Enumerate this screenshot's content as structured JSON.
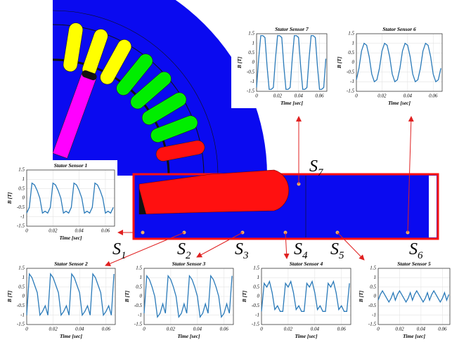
{
  "chart_data": [
    {
      "type": "line",
      "title": "Stator Sensor 7",
      "xlabel": "Time [sec]",
      "ylabel": "B [T]",
      "color": "#2a7ab9",
      "grid": true,
      "xlim": [
        0,
        0.067
      ],
      "ylim": [
        -1.5,
        1.5
      ],
      "xticks": [
        0,
        0.02,
        0.04,
        0.06
      ],
      "yticks": [
        -1.5,
        -1,
        -0.5,
        0,
        0.5,
        1,
        1.5
      ],
      "x": [
        0,
        0.002,
        0.004,
        0.006,
        0.008,
        0.01,
        0.012,
        0.014,
        0.016,
        0.018,
        0.02,
        0.022,
        0.024,
        0.026,
        0.028,
        0.03,
        0.032,
        0.034,
        0.036,
        0.038,
        0.04,
        0.042,
        0.044,
        0.046,
        0.048,
        0.05,
        0.052,
        0.054,
        0.056,
        0.058,
        0.06,
        0.062,
        0.064,
        0.066
      ],
      "values": [
        -1.3,
        0.2,
        1.4,
        1.4,
        1.3,
        -0.2,
        -1.4,
        -1.4,
        -1.3,
        0.2,
        1.4,
        1.4,
        1.3,
        -0.2,
        -1.4,
        -1.4,
        -1.3,
        0.2,
        1.4,
        1.4,
        1.3,
        -0.2,
        -1.4,
        -1.4,
        -1.3,
        0.2,
        1.4,
        1.4,
        1.3,
        -0.2,
        -1.4,
        -1.4,
        -1.3,
        0.2
      ]
    },
    {
      "type": "line",
      "title": "Stator Sensor 6",
      "xlabel": "Time [sec]",
      "ylabel": "B [T]",
      "color": "#2a7ab9",
      "grid": true,
      "xlim": [
        0,
        0.067
      ],
      "ylim": [
        -1.5,
        1.5
      ],
      "xticks": [
        0,
        0.02,
        0.04,
        0.06
      ],
      "yticks": [
        -1.5,
        -1,
        -0.5,
        0,
        0.5,
        1,
        1.5
      ],
      "x": [
        0,
        0.002,
        0.004,
        0.006,
        0.008,
        0.01,
        0.012,
        0.014,
        0.016,
        0.018,
        0.02,
        0.022,
        0.024,
        0.026,
        0.028,
        0.03,
        0.032,
        0.034,
        0.036,
        0.038,
        0.04,
        0.042,
        0.044,
        0.046,
        0.048,
        0.05,
        0.052,
        0.054,
        0.056,
        0.058,
        0.06,
        0.062,
        0.064,
        0.066
      ],
      "values": [
        -0.9,
        -0.3,
        0.6,
        1.0,
        0.9,
        0.3,
        -0.6,
        -1.0,
        -0.9,
        -0.3,
        0.6,
        1.0,
        0.9,
        0.3,
        -0.6,
        -1.0,
        -0.9,
        -0.3,
        0.6,
        1.0,
        0.9,
        0.3,
        -0.6,
        -1.0,
        -0.9,
        -0.3,
        0.6,
        1.0,
        0.9,
        0.3,
        -0.6,
        -1.0,
        -0.9,
        -0.3
      ]
    },
    {
      "type": "line",
      "title": "Stator Sensor 1",
      "xlabel": "Time [sec]",
      "ylabel": "B [T]",
      "color": "#2a7ab9",
      "grid": true,
      "xlim": [
        0,
        0.067
      ],
      "ylim": [
        -1.5,
        1.5
      ],
      "xticks": [
        0,
        0.02,
        0.04,
        0.06
      ],
      "yticks": [
        -1.5,
        -1,
        -0.5,
        0,
        0.5,
        1,
        1.5
      ],
      "x": [
        0,
        0.002,
        0.004,
        0.006,
        0.008,
        0.01,
        0.012,
        0.014,
        0.016,
        0.018,
        0.02,
        0.022,
        0.024,
        0.026,
        0.028,
        0.03,
        0.032,
        0.034,
        0.036,
        0.038,
        0.04,
        0.042,
        0.044,
        0.046,
        0.048,
        0.05,
        0.052,
        0.054,
        0.056,
        0.058,
        0.06,
        0.062,
        0.064,
        0.066
      ],
      "values": [
        -0.8,
        -0.5,
        0.8,
        0.7,
        0.4,
        0.0,
        -0.8,
        -0.7,
        -0.8,
        -0.5,
        0.8,
        0.7,
        0.4,
        0.0,
        -0.8,
        -0.7,
        -0.8,
        -0.5,
        0.8,
        0.7,
        0.4,
        0.0,
        -0.8,
        -0.7,
        -0.8,
        -0.5,
        0.8,
        0.7,
        0.4,
        0.0,
        -0.8,
        -0.7,
        -0.8,
        -0.5
      ]
    },
    {
      "type": "line",
      "title": "Stator Sensor 2",
      "xlabel": "Time [sec]",
      "ylabel": "B [T]",
      "color": "#2a7ab9",
      "grid": true,
      "xlim": [
        0,
        0.067
      ],
      "ylim": [
        -1.5,
        1.5
      ],
      "xticks": [
        0,
        0.02,
        0.04,
        0.06
      ],
      "yticks": [
        -1.5,
        -1,
        -0.5,
        0,
        0.5,
        1,
        1.5
      ],
      "x": [
        0,
        0.002,
        0.004,
        0.006,
        0.008,
        0.01,
        0.012,
        0.014,
        0.016,
        0.018,
        0.02,
        0.022,
        0.024,
        0.026,
        0.028,
        0.03,
        0.032,
        0.034,
        0.036,
        0.038,
        0.04,
        0.042,
        0.044,
        0.046,
        0.048,
        0.05,
        0.052,
        0.054,
        0.056,
        0.058,
        0.06,
        0.062,
        0.064,
        0.066
      ],
      "values": [
        -1.0,
        1.2,
        1.0,
        0.6,
        0.2,
        -1.0,
        -0.8,
        -0.5,
        -1.0,
        1.2,
        1.0,
        0.6,
        0.2,
        -1.0,
        -0.8,
        -0.5,
        -1.0,
        1.2,
        1.0,
        0.6,
        0.2,
        -1.0,
        -0.8,
        -0.5,
        -1.0,
        1.2,
        1.0,
        0.6,
        0.2,
        -1.0,
        -0.8,
        -0.5,
        -1.0,
        1.2
      ]
    },
    {
      "type": "line",
      "title": "Stator Sensor 3",
      "xlabel": "Time [sec]",
      "ylabel": "B [T]",
      "color": "#2a7ab9",
      "grid": true,
      "xlim": [
        0,
        0.067
      ],
      "ylim": [
        -1.5,
        1.5
      ],
      "xticks": [
        0,
        0.02,
        0.04,
        0.06
      ],
      "yticks": [
        -1.5,
        -1,
        -0.5,
        0,
        0.5,
        1,
        1.5
      ],
      "x": [
        0,
        0.002,
        0.004,
        0.006,
        0.008,
        0.01,
        0.012,
        0.014,
        0.016,
        0.018,
        0.02,
        0.022,
        0.024,
        0.026,
        0.028,
        0.03,
        0.032,
        0.034,
        0.036,
        0.038,
        0.04,
        0.042,
        0.044,
        0.046,
        0.048,
        0.05,
        0.052,
        0.054,
        0.056,
        0.058,
        0.06,
        0.062,
        0.064,
        0.066
      ],
      "values": [
        -0.9,
        1.1,
        0.9,
        0.5,
        0.0,
        -1.1,
        -0.9,
        -0.4,
        -0.9,
        1.1,
        0.9,
        0.5,
        0.0,
        -1.1,
        -0.9,
        -0.4,
        -0.9,
        1.1,
        0.9,
        0.5,
        0.0,
        -1.1,
        -0.9,
        -0.4,
        -0.9,
        1.1,
        0.9,
        0.5,
        0.0,
        -1.1,
        -0.9,
        -0.4,
        -0.9,
        1.1
      ]
    },
    {
      "type": "line",
      "title": "Stator Sensor 4",
      "xlabel": "Time [sec]",
      "ylabel": "B [T]",
      "color": "#2a7ab9",
      "grid": true,
      "xlim": [
        0,
        0.067
      ],
      "ylim": [
        -1.5,
        1.5
      ],
      "xticks": [
        0,
        0.02,
        0.04,
        0.06
      ],
      "yticks": [
        -1.5,
        -1,
        -0.5,
        0,
        0.5,
        1,
        1.5
      ],
      "x": [
        0,
        0.002,
        0.004,
        0.006,
        0.008,
        0.01,
        0.012,
        0.014,
        0.016,
        0.018,
        0.02,
        0.022,
        0.024,
        0.026,
        0.028,
        0.03,
        0.032,
        0.034,
        0.036,
        0.038,
        0.04,
        0.042,
        0.044,
        0.046,
        0.048,
        0.05,
        0.052,
        0.054,
        0.056,
        0.058,
        0.06,
        0.062,
        0.064,
        0.066
      ],
      "values": [
        -0.8,
        0.7,
        0.5,
        0.8,
        0.2,
        -0.7,
        -0.5,
        -0.8,
        -0.8,
        0.7,
        0.5,
        0.8,
        0.2,
        -0.7,
        -0.5,
        -0.8,
        -0.8,
        0.7,
        0.5,
        0.8,
        0.2,
        -0.7,
        -0.5,
        -0.8,
        -0.8,
        0.7,
        0.5,
        0.8,
        0.2,
        -0.7,
        -0.5,
        -0.8,
        -0.8,
        0.7
      ]
    },
    {
      "type": "line",
      "title": "Stator Sensor 5",
      "xlabel": "Time [sec]",
      "ylabel": "B [T]",
      "color": "#2a7ab9",
      "grid": true,
      "xlim": [
        0,
        0.067
      ],
      "ylim": [
        -1.5,
        1.5
      ],
      "xticks": [
        0,
        0.02,
        0.04,
        0.06
      ],
      "yticks": [
        -1.5,
        -1,
        -0.5,
        0,
        0.5,
        1,
        1.5
      ],
      "x": [
        0,
        0.002,
        0.004,
        0.006,
        0.008,
        0.01,
        0.012,
        0.014,
        0.016,
        0.018,
        0.02,
        0.022,
        0.024,
        0.026,
        0.028,
        0.03,
        0.032,
        0.034,
        0.036,
        0.038,
        0.04,
        0.042,
        0.044,
        0.046,
        0.048,
        0.05,
        0.052,
        0.054,
        0.056,
        0.058,
        0.06,
        0.062,
        0.064,
        0.066
      ],
      "values": [
        -0.2,
        0.1,
        0.3,
        0.1,
        -0.1,
        -0.3,
        -0.1,
        0.2,
        -0.2,
        0.1,
        0.3,
        0.1,
        -0.1,
        -0.3,
        -0.1,
        0.2,
        -0.2,
        0.1,
        0.3,
        0.1,
        -0.1,
        -0.3,
        -0.1,
        0.2,
        -0.2,
        0.1,
        0.3,
        0.1,
        -0.1,
        -0.3,
        -0.1,
        0.2,
        -0.2,
        0.1
      ]
    }
  ],
  "sensor_labels": [
    {
      "symbol": "S",
      "subscript": "1"
    },
    {
      "symbol": "S",
      "subscript": "2"
    },
    {
      "symbol": "S",
      "subscript": "3"
    },
    {
      "symbol": "S",
      "subscript": "4"
    },
    {
      "symbol": "S",
      "subscript": "5"
    },
    {
      "symbol": "S",
      "subscript": "6"
    },
    {
      "symbol": "S",
      "subscript": "7"
    }
  ]
}
